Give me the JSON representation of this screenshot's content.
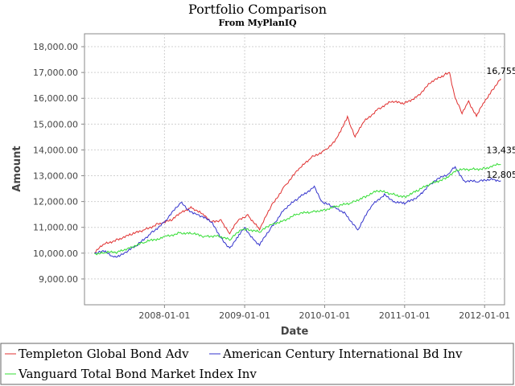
{
  "chart_data": {
    "type": "line",
    "title": "Portfolio Comparison",
    "subtitle": "From MyPlanIQ",
    "xlabel": "Date",
    "ylabel": "Amount",
    "xlim": [
      "2007-01-01",
      "2012-04-01"
    ],
    "ylim": [
      8000,
      18500
    ],
    "x_ticks": [
      "2008-01-01",
      "2009-01-01",
      "2010-01-01",
      "2011-01-01",
      "2012-01-01"
    ],
    "y_ticks": [
      9000,
      10000,
      11000,
      12000,
      13000,
      14000,
      15000,
      16000,
      17000,
      18000
    ],
    "y_tick_labels": [
      "9,000.00",
      "10,000.00",
      "11,000.00",
      "12,000.00",
      "13,000.00",
      "14,000.00",
      "15,000.00",
      "16,000.00",
      "17,000.00",
      "18,000.00"
    ],
    "grid": true,
    "legend_position": "bottom",
    "series": [
      {
        "name": "Templeton Global Bond Adv",
        "color": "#e03030",
        "end_label": "16,755",
        "points": [
          [
            "2007-02-15",
            10000
          ],
          [
            "2007-04-01",
            10350
          ],
          [
            "2007-06-01",
            10550
          ],
          [
            "2007-08-01",
            10700
          ],
          [
            "2007-10-01",
            10900
          ],
          [
            "2007-12-01",
            11150
          ],
          [
            "2008-02-01",
            11250
          ],
          [
            "2008-03-15",
            11550
          ],
          [
            "2008-05-01",
            11800
          ],
          [
            "2008-06-15",
            11550
          ],
          [
            "2008-08-01",
            11200
          ],
          [
            "2008-09-15",
            11300
          ],
          [
            "2008-10-25",
            10750
          ],
          [
            "2008-12-01",
            11250
          ],
          [
            "2009-01-15",
            11500
          ],
          [
            "2009-03-10",
            10900
          ],
          [
            "2009-05-01",
            11800
          ],
          [
            "2009-07-01",
            12600
          ],
          [
            "2009-09-01",
            13200
          ],
          [
            "2009-11-01",
            13700
          ],
          [
            "2010-01-01",
            14000
          ],
          [
            "2010-02-15",
            14300
          ],
          [
            "2010-03-15",
            14700
          ],
          [
            "2010-04-15",
            15300
          ],
          [
            "2010-05-20",
            14500
          ],
          [
            "2010-07-01",
            15100
          ],
          [
            "2010-09-01",
            15600
          ],
          [
            "2010-11-01",
            15850
          ],
          [
            "2011-01-01",
            15800
          ],
          [
            "2011-03-01",
            16100
          ],
          [
            "2011-05-01",
            16600
          ],
          [
            "2011-07-01",
            16900
          ],
          [
            "2011-07-25",
            17000
          ],
          [
            "2011-08-20",
            16000
          ],
          [
            "2011-09-20",
            15400
          ],
          [
            "2011-10-20",
            15900
          ],
          [
            "2011-11-25",
            15300
          ],
          [
            "2011-12-20",
            15700
          ],
          [
            "2012-02-01",
            16300
          ],
          [
            "2012-03-15",
            16755
          ]
        ]
      },
      {
        "name": "American Century International Bd Inv",
        "color": "#3333cc",
        "end_label": "12,805",
        "points": [
          [
            "2007-02-15",
            10000
          ],
          [
            "2007-04-01",
            10050
          ],
          [
            "2007-05-15",
            9850
          ],
          [
            "2007-07-01",
            10000
          ],
          [
            "2007-09-01",
            10300
          ],
          [
            "2007-11-01",
            10800
          ],
          [
            "2008-01-01",
            11200
          ],
          [
            "2008-03-15",
            11950
          ],
          [
            "2008-04-15",
            11700
          ],
          [
            "2008-06-01",
            11500
          ],
          [
            "2008-08-01",
            11200
          ],
          [
            "2008-09-15",
            10600
          ],
          [
            "2008-10-25",
            10200
          ],
          [
            "2008-12-01",
            10600
          ],
          [
            "2009-01-01",
            11000
          ],
          [
            "2009-02-15",
            10500
          ],
          [
            "2009-03-10",
            10300
          ],
          [
            "2009-05-01",
            11000
          ],
          [
            "2009-07-01",
            11700
          ],
          [
            "2009-09-01",
            12100
          ],
          [
            "2009-11-15",
            12600
          ],
          [
            "2009-12-20",
            12000
          ],
          [
            "2010-02-01",
            11800
          ],
          [
            "2010-04-01",
            11600
          ],
          [
            "2010-06-01",
            10900
          ],
          [
            "2010-08-01",
            11800
          ],
          [
            "2010-10-01",
            12300
          ],
          [
            "2010-11-15",
            12000
          ],
          [
            "2011-01-01",
            11900
          ],
          [
            "2011-03-01",
            12200
          ],
          [
            "2011-05-01",
            12700
          ],
          [
            "2011-07-25",
            13100
          ],
          [
            "2011-08-20",
            13350
          ],
          [
            "2011-10-01",
            12800
          ],
          [
            "2011-12-01",
            12750
          ],
          [
            "2012-02-01",
            12900
          ],
          [
            "2012-03-15",
            12805
          ]
        ]
      },
      {
        "name": "Vanguard Total Bond Market Index Inv",
        "color": "#33dd33",
        "end_label": "13,435",
        "points": [
          [
            "2007-02-15",
            10000
          ],
          [
            "2007-04-01",
            10000
          ],
          [
            "2007-06-01",
            10050
          ],
          [
            "2007-08-01",
            10250
          ],
          [
            "2007-10-01",
            10400
          ],
          [
            "2008-01-01",
            10650
          ],
          [
            "2008-03-15",
            10800
          ],
          [
            "2008-05-01",
            10750
          ],
          [
            "2008-07-01",
            10650
          ],
          [
            "2008-09-01",
            10700
          ],
          [
            "2008-10-25",
            10500
          ],
          [
            "2008-12-15",
            10900
          ],
          [
            "2009-01-15",
            10950
          ],
          [
            "2009-03-10",
            10800
          ],
          [
            "2009-05-01",
            11100
          ],
          [
            "2009-07-01",
            11300
          ],
          [
            "2009-09-01",
            11500
          ],
          [
            "2009-11-01",
            11600
          ],
          [
            "2010-01-01",
            11700
          ],
          [
            "2010-03-01",
            11800
          ],
          [
            "2010-05-01",
            11950
          ],
          [
            "2010-07-01",
            12200
          ],
          [
            "2010-09-01",
            12400
          ],
          [
            "2010-11-01",
            12300
          ],
          [
            "2011-01-01",
            12200
          ],
          [
            "2011-03-01",
            12400
          ],
          [
            "2011-05-01",
            12700
          ],
          [
            "2011-07-01",
            12900
          ],
          [
            "2011-09-01",
            13200
          ],
          [
            "2011-11-01",
            13250
          ],
          [
            "2012-01-01",
            13300
          ],
          [
            "2012-03-15",
            13435
          ]
        ]
      }
    ]
  }
}
